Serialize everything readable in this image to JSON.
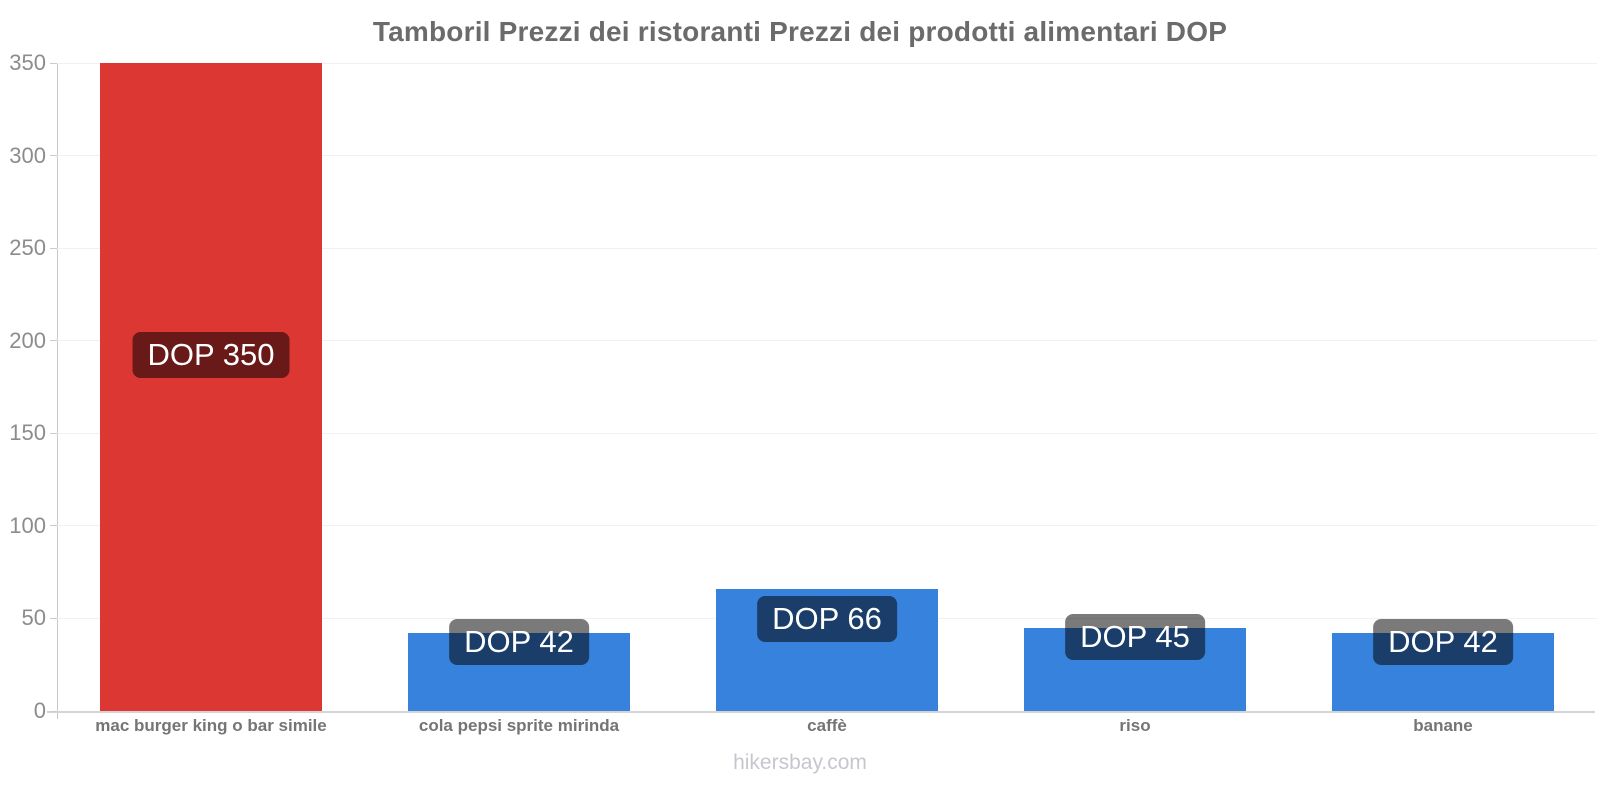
{
  "page": {
    "title": "Tamboril Prezzi dei ristoranti Prezzi dei prodotti alimentari DOP",
    "watermark": "hikersbay.com"
  },
  "chart_data": {
    "type": "bar",
    "title": "Tamboril Prezzi dei ristoranti Prezzi dei prodotti alimentari DOP",
    "currency": "DOP",
    "categories": [
      "mac burger king o bar simile",
      "cola pepsi sprite mirinda",
      "caffè",
      "riso",
      "banane"
    ],
    "values": [
      350,
      42,
      66,
      45,
      42
    ],
    "value_labels": [
      "DOP 350",
      "DOP 42",
      "DOP 66",
      "DOP 45",
      "DOP 42"
    ],
    "bar_colors": [
      "#dc3732",
      "#3782dc",
      "#3782dc",
      "#3782dc",
      "#3782dc"
    ],
    "xlabel": "",
    "ylabel": "",
    "ylim": [
      0,
      350
    ],
    "yticks": [
      0,
      50,
      100,
      150,
      200,
      250,
      300,
      350
    ],
    "grid": true,
    "legend": false,
    "badge_background": "rgba(0,0,0,0.52)",
    "badge_text_color": "#ffffff",
    "highlight_color": "#dc3732",
    "default_color": "#3782dc"
  }
}
